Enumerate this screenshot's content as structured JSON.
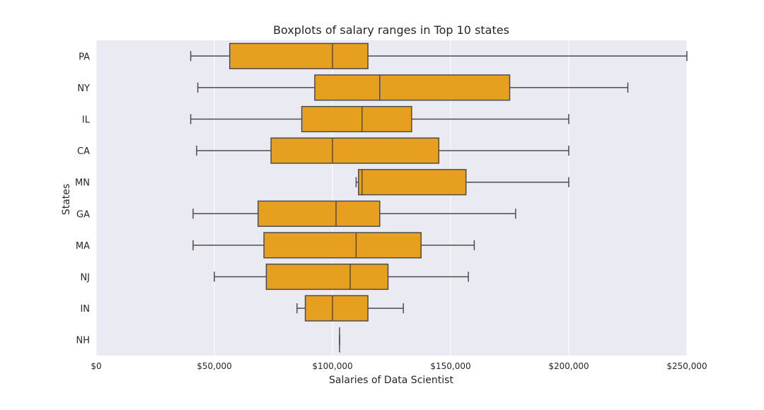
{
  "chart_data": {
    "type": "boxplot",
    "orientation": "horizontal",
    "title": "Boxplots of salary ranges in Top 10 states",
    "xlabel": "Salaries of Data Scientist",
    "ylabel": "States",
    "xlim": [
      0,
      250000
    ],
    "x_ticks": [
      0,
      50000,
      100000,
      150000,
      200000,
      250000
    ],
    "x_tick_labels": [
      "$0",
      "$50,000",
      "$100,000",
      "$150,000",
      "$200,000",
      "$250,000"
    ],
    "grid": true,
    "categories": [
      "PA",
      "NY",
      "IL",
      "CA",
      "MN",
      "GA",
      "MA",
      "NJ",
      "IN",
      "NH"
    ],
    "boxes": [
      {
        "label": "PA",
        "whisker_low": 40000,
        "q1": 56500,
        "median": 100000,
        "q3": 115000,
        "whisker_high": 250000
      },
      {
        "label": "NY",
        "whisker_low": 43000,
        "q1": 92500,
        "median": 120000,
        "q3": 175000,
        "whisker_high": 225000
      },
      {
        "label": "IL",
        "whisker_low": 40000,
        "q1": 87000,
        "median": 112500,
        "q3": 133500,
        "whisker_high": 200000
      },
      {
        "label": "CA",
        "whisker_low": 42500,
        "q1": 74000,
        "median": 100000,
        "q3": 145000,
        "whisker_high": 200000
      },
      {
        "label": "MN",
        "whisker_low": 110000,
        "q1": 111000,
        "median": 112500,
        "q3": 156500,
        "whisker_high": 200000
      },
      {
        "label": "GA",
        "whisker_low": 41000,
        "q1": 68500,
        "median": 101500,
        "q3": 120000,
        "whisker_high": 177500
      },
      {
        "label": "MA",
        "whisker_low": 41000,
        "q1": 71000,
        "median": 110000,
        "q3": 137500,
        "whisker_high": 160000
      },
      {
        "label": "NJ",
        "whisker_low": 50000,
        "q1": 72000,
        "median": 107500,
        "q3": 123500,
        "whisker_high": 157500
      },
      {
        "label": "IN",
        "whisker_low": 85000,
        "q1": 88500,
        "median": 100000,
        "q3": 115000,
        "whisker_high": 130000
      },
      {
        "label": "NH",
        "whisker_low": 103000,
        "q1": 103000,
        "median": 103000,
        "q3": 103000,
        "whisker_high": 103000
      }
    ],
    "colors": {
      "box_fill": "#e69f1f",
      "line": "#4d4d4d",
      "plot_bg": "#eaeaf2",
      "grid": "#ffffff"
    }
  }
}
